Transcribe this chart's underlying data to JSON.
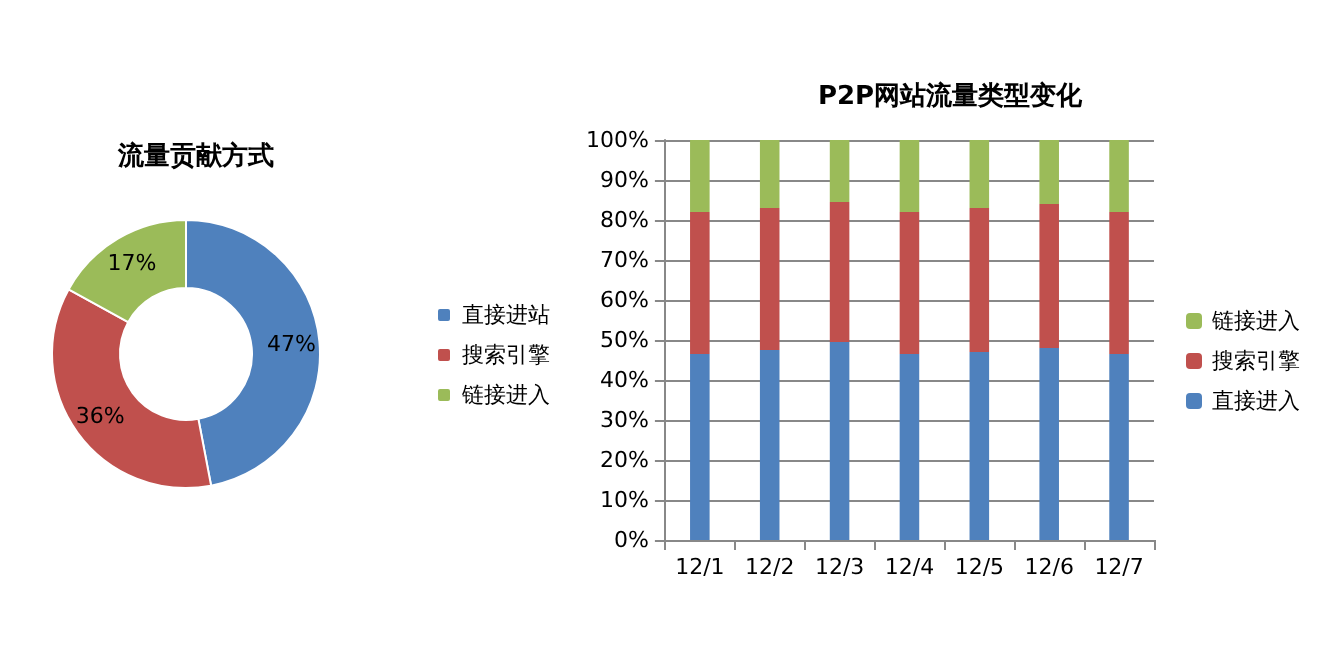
{
  "chart_data": [
    {
      "type": "donut",
      "title": "流量贡献方式",
      "categories": [
        "直接进站",
        "搜索引擎",
        "链接进入"
      ],
      "values": [
        47,
        36,
        17
      ],
      "colors": [
        "#4f81bd",
        "#c0504d",
        "#9bbb59"
      ],
      "value_labels": [
        "47%",
        "36%",
        "17%"
      ],
      "legend": "right"
    },
    {
      "type": "bar",
      "title": "P2P网站流量类型变化",
      "stacked": true,
      "categories": [
        "12/1",
        "12/2",
        "12/3",
        "12/4",
        "12/5",
        "12/6",
        "12/7"
      ],
      "series": [
        {
          "name": "直接进入",
          "color": "#4f81bd",
          "values": [
            46.5,
            47.5,
            49.5,
            46.5,
            47,
            48,
            46.5
          ]
        },
        {
          "name": "搜索引擎",
          "color": "#c0504d",
          "values": [
            35.5,
            35.5,
            35,
            35.5,
            36,
            36,
            35.5
          ]
        },
        {
          "name": "链接进入",
          "color": "#9bbb59",
          "values": [
            18,
            17,
            15.5,
            18,
            17,
            16,
            18
          ]
        }
      ],
      "ylim": [
        0,
        100
      ],
      "yticks": [
        {
          "value": 0,
          "label": "0%"
        },
        {
          "value": 10,
          "label": "10%"
        },
        {
          "value": 20,
          "label": "20%"
        },
        {
          "value": 30,
          "label": "30%"
        },
        {
          "value": 40,
          "label": "40%"
        },
        {
          "value": 50,
          "label": "50%"
        },
        {
          "value": 60,
          "label": "60%"
        },
        {
          "value": 70,
          "label": "70%"
        },
        {
          "value": 80,
          "label": "80%"
        },
        {
          "value": 90,
          "label": "90%"
        },
        {
          "value": 100,
          "label": "100%"
        }
      ],
      "grid": "y",
      "legend": "right"
    }
  ]
}
